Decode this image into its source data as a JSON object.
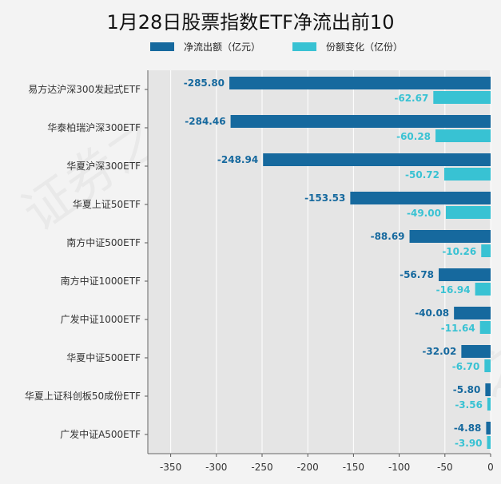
{
  "colors": {
    "net_outflow": "#16699e",
    "share_change": "#38c2d3",
    "plot_bg": "#e5e5e5",
    "grid": "#ffffff"
  },
  "legend": {
    "net_outflow": "净流出额（亿元）",
    "share_change": "份额变化（亿份）"
  },
  "watermark": "证券之星",
  "chart_data": {
    "type": "bar",
    "orientation": "horizontal",
    "title": "1月28日股票指数ETF净流出前10",
    "categories": [
      "易方达沪深300发起式ETF",
      "华泰柏瑞沪深300ETF",
      "华夏沪深300ETF",
      "华夏上证50ETF",
      "南方中证500ETF",
      "南方中证1000ETF",
      "广发中证1000ETF",
      "华夏中证500ETF",
      "华夏上证科创板50成份ETF",
      "广发中证A500ETF"
    ],
    "series": [
      {
        "name": "净流出额（亿元）",
        "values": [
          -285.8,
          -284.46,
          -248.94,
          -153.53,
          -88.69,
          -56.78,
          -40.08,
          -32.02,
          -5.8,
          -4.88
        ],
        "labels": [
          "-285.80",
          "-284.46",
          "-248.94",
          "-153.53",
          "-88.69",
          "-56.78",
          "-40.08",
          "-32.02",
          "-5.80",
          "-4.88"
        ]
      },
      {
        "name": "份额变化（亿份）",
        "values": [
          -62.67,
          -60.28,
          -50.72,
          -49.0,
          -10.26,
          -16.94,
          -11.64,
          -6.7,
          -3.56,
          -3.9
        ],
        "labels": [
          "-62.67",
          "-60.28",
          "-50.72",
          "-49.00",
          "-10.26",
          "-16.94",
          "-11.64",
          "-6.70",
          "-3.56",
          "-3.90"
        ]
      }
    ],
    "xlim": [
      -375,
      0
    ],
    "xticks": [
      -350,
      -300,
      -250,
      -200,
      -150,
      -100,
      -50,
      0
    ],
    "xtick_labels": [
      "-350",
      "-300",
      "-250",
      "-200",
      "-150",
      "-100",
      "-50",
      "0"
    ],
    "grid": true,
    "legend_position": "top"
  }
}
